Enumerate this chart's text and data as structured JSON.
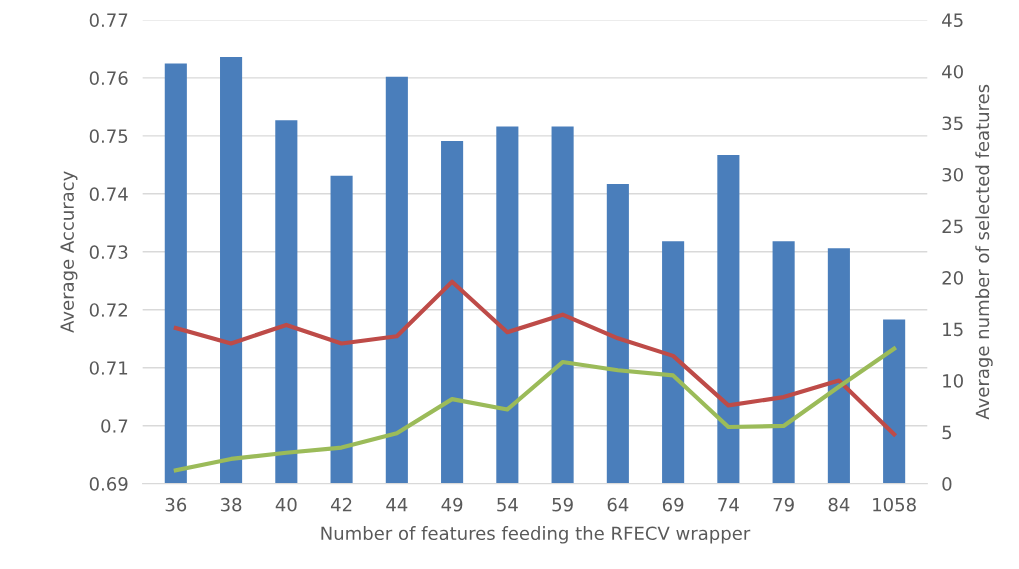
{
  "chart_data": {
    "type": "bar",
    "xlabel": "Number of features feeding the RFECV wrapper",
    "ylabel": "Average Accuracy",
    "y2label": "Average number of selected features",
    "categories": [
      "36",
      "38",
      "40",
      "42",
      "44",
      "49",
      "54",
      "59",
      "64",
      "69",
      "74",
      "79",
      "84",
      "1058"
    ],
    "series": [
      {
        "color": "#4a7ebb",
        "values": [
          0.7625,
          0.7636,
          0.7527,
          0.7431,
          0.7602,
          0.7491,
          0.7516,
          0.7516,
          0.7417,
          0.7318,
          0.7467,
          0.7318,
          0.7306,
          0.7183
        ]
      },
      {
        "type": "line",
        "axis": "y2",
        "color": "#be4b48",
        "values": [
          15.1,
          13.6,
          15.4,
          13.6,
          14.3,
          19.6,
          14.7,
          16.4,
          14.1,
          12.4,
          7.6,
          8.4,
          10.0,
          4.8
        ]
      },
      {
        "type": "line",
        "axis": "y2",
        "color": "#9bbb59",
        "values": [
          1.3,
          2.4,
          3.0,
          3.5,
          4.9,
          8.2,
          7.2,
          11.8,
          11.0,
          10.5,
          5.5,
          5.6,
          9.4,
          13.1
        ]
      }
    ],
    "ylim": [
      0.69,
      0.77
    ],
    "yticks": [
      {
        "value": 0.69,
        "label": "0.69"
      },
      {
        "value": 0.7,
        "label": "0.7"
      },
      {
        "value": 0.71,
        "label": "0.71"
      },
      {
        "value": 0.72,
        "label": "0.72"
      },
      {
        "value": 0.73,
        "label": "0.73"
      },
      {
        "value": 0.74,
        "label": "0.74"
      },
      {
        "value": 0.75,
        "label": "0.75"
      },
      {
        "value": 0.76,
        "label": "0.76"
      },
      {
        "value": 0.77,
        "label": "0.77"
      }
    ],
    "y2lim": [
      0,
      45
    ],
    "y2ticks": [
      0,
      5,
      10,
      15,
      20,
      25,
      30,
      35,
      40,
      45
    ],
    "grid": "y",
    "marker": "none",
    "line_style": "solid"
  }
}
